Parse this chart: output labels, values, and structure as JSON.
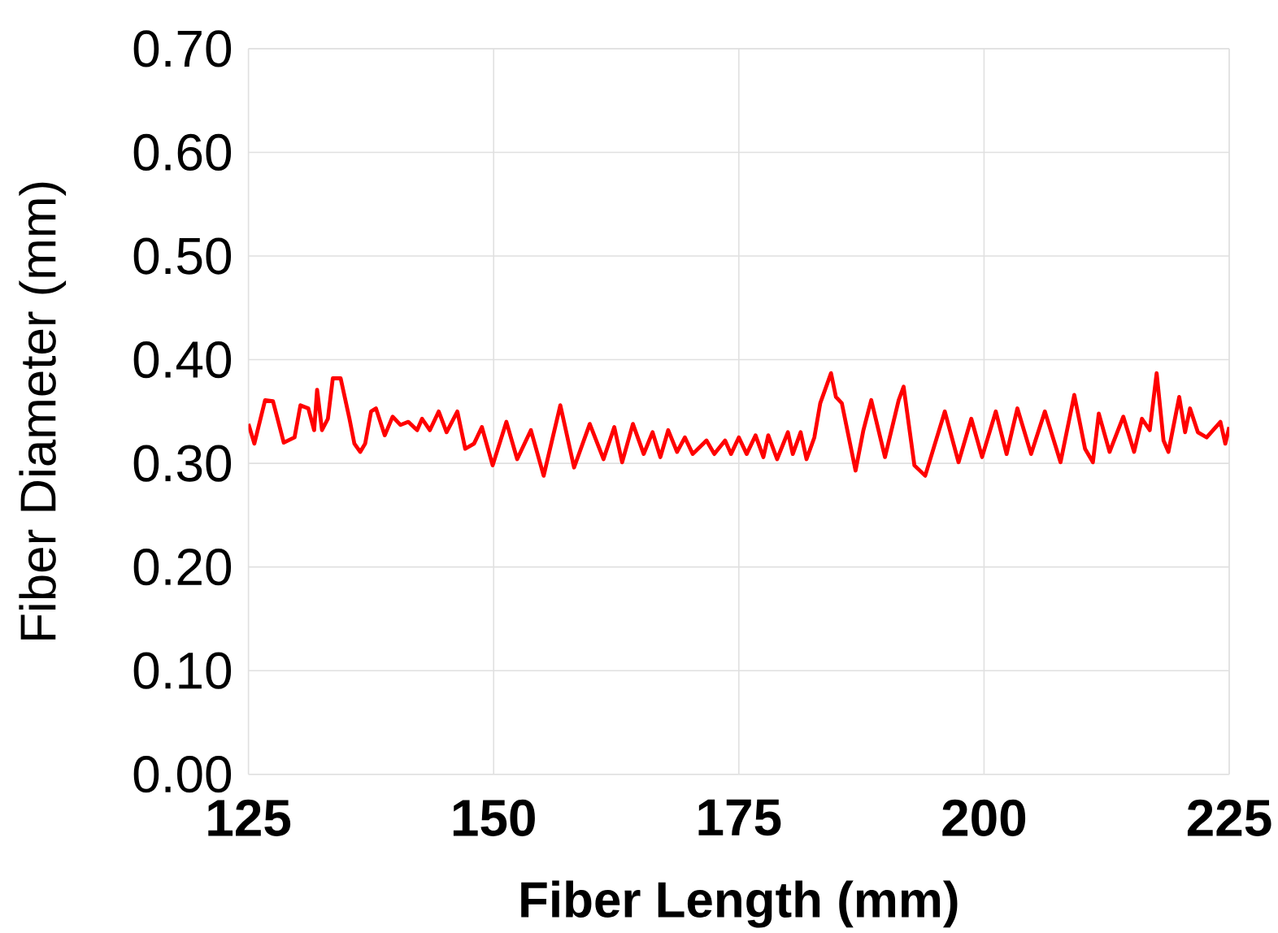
{
  "chart_data": {
    "type": "line",
    "xlabel": "Fiber Length (mm)",
    "ylabel": "Fiber Diameter (mm)",
    "xlim": [
      125,
      225
    ],
    "xticks": [
      125,
      150,
      175,
      200,
      225
    ],
    "ylim": [
      0,
      0.7
    ],
    "yticks": [
      {
        "value": 0,
        "label": "0.00"
      },
      {
        "value": 0.1,
        "label": "0.10"
      },
      {
        "value": 0.2,
        "label": "0.20"
      },
      {
        "value": 0.3,
        "label": "0.30"
      },
      {
        "value": 0.4,
        "label": "0.40"
      },
      {
        "value": 0.5,
        "label": "0.50"
      },
      {
        "value": 0.6,
        "label": "0.60"
      },
      {
        "value": 0.7,
        "label": "0.70"
      }
    ],
    "grid": true,
    "marker": "none",
    "line_style": "solid",
    "series": [
      {
        "color": "#ff0000",
        "x": [
          125,
          125.6,
          126.7,
          127.5,
          128.6,
          129.7,
          130.3,
          131.1,
          131.7,
          132.0,
          132.5,
          133.1,
          133.6,
          134.4,
          135.3,
          135.8,
          136.4,
          136.9,
          137.5,
          138.0,
          138.9,
          139.7,
          140.5,
          141.3,
          142.2,
          142.7,
          143.5,
          144.4,
          145.2,
          146.3,
          147.1,
          148.0,
          148.8,
          149.9,
          151.3,
          152.4,
          153.8,
          155.1,
          156.8,
          158.2,
          159.8,
          161.2,
          162.3,
          163.1,
          164.2,
          165.3,
          166.2,
          167.0,
          167.8,
          168.7,
          169.5,
          170.3,
          171.7,
          172.5,
          173.6,
          174.2,
          175.0,
          175.8,
          176.7,
          177.5,
          178.0,
          178.9,
          180.0,
          180.5,
          181.3,
          181.9,
          182.7,
          183.3,
          184.4,
          184.9,
          185.5,
          186.9,
          187.7,
          188.5,
          189.9,
          191.3,
          191.8,
          192.9,
          194.0,
          196.0,
          197.4,
          198.7,
          199.8,
          201.2,
          202.3,
          203.4,
          204.8,
          206.2,
          207.8,
          209.2,
          210.3,
          211.1,
          211.7,
          212.8,
          214.2,
          215.3,
          216.1,
          216.9,
          217.6,
          218.3,
          218.8,
          219.9,
          220.5,
          221.0,
          221.8,
          222.7,
          224.1,
          224.6,
          225.0
        ],
        "values": [
          0.338,
          0.319,
          0.361,
          0.36,
          0.32,
          0.325,
          0.356,
          0.353,
          0.332,
          0.371,
          0.332,
          0.343,
          0.382,
          0.382,
          0.343,
          0.319,
          0.311,
          0.319,
          0.35,
          0.353,
          0.327,
          0.345,
          0.337,
          0.34,
          0.332,
          0.343,
          0.332,
          0.35,
          0.33,
          0.35,
          0.314,
          0.319,
          0.335,
          0.298,
          0.34,
          0.304,
          0.332,
          0.288,
          0.356,
          0.296,
          0.338,
          0.304,
          0.335,
          0.301,
          0.338,
          0.309,
          0.33,
          0.306,
          0.332,
          0.311,
          0.325,
          0.309,
          0.322,
          0.309,
          0.322,
          0.309,
          0.325,
          0.309,
          0.327,
          0.306,
          0.327,
          0.304,
          0.33,
          0.309,
          0.33,
          0.304,
          0.325,
          0.358,
          0.387,
          0.364,
          0.358,
          0.293,
          0.332,
          0.361,
          0.306,
          0.361,
          0.374,
          0.298,
          0.288,
          0.35,
          0.301,
          0.343,
          0.306,
          0.35,
          0.309,
          0.353,
          0.309,
          0.35,
          0.301,
          0.366,
          0.314,
          0.301,
          0.348,
          0.311,
          0.345,
          0.311,
          0.343,
          0.332,
          0.387,
          0.322,
          0.311,
          0.364,
          0.33,
          0.353,
          0.33,
          0.325,
          0.34,
          0.319,
          0.335
        ]
      }
    ]
  }
}
